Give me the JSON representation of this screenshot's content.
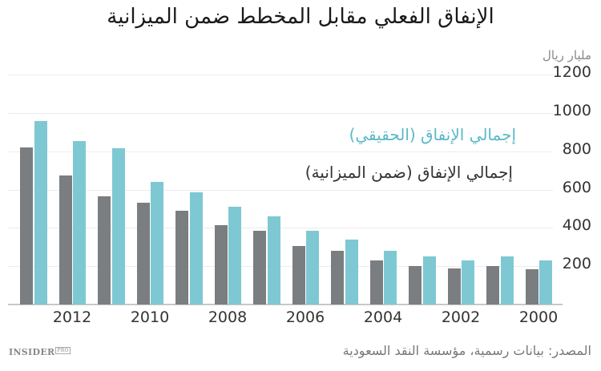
{
  "title": "الإنفاق الفعلي مقابل المخطط ضمن الميزانية",
  "unit_label": "مليار ريال",
  "legend": {
    "actual": "إجمالي الإنفاق (الحقيقي)",
    "budget": "إجمالي الإنفاق (ضمن الميزانية)"
  },
  "source": "المصدر: بيانات رسمية، مؤسسة النقد السعودية",
  "logo": {
    "main": "INSIDER",
    "badge": "PRO"
  },
  "colors": {
    "budget": "#7a7e80",
    "actual": "#7ec8d3"
  },
  "y_ticks": [
    "1200",
    "1000",
    "800",
    "600",
    "400",
    "200"
  ],
  "x_ticks": [
    "2012",
    "2010",
    "2008",
    "2006",
    "2004",
    "2002",
    "2000"
  ],
  "chart_data": {
    "type": "bar",
    "title": "الإنفاق الفعلي مقابل المخطط ضمن الميزانية",
    "ylabel": "مليار ريال",
    "xlabel": "",
    "ylim": [
      0,
      1200
    ],
    "y_ticks": [
      200,
      400,
      600,
      800,
      1000,
      1200
    ],
    "grid": true,
    "legend_position": "inside-top-right",
    "categories": [
      "2013",
      "2012",
      "2011",
      "2010",
      "2009",
      "2008",
      "2007",
      "2006",
      "2005",
      "2004",
      "2003",
      "2002",
      "2001",
      "2000"
    ],
    "x_tick_labels": [
      "2012",
      "2010",
      "2008",
      "2006",
      "2004",
      "2002",
      "2000"
    ],
    "series": [
      {
        "name": "إجمالي الإنفاق (ضمن الميزانية)",
        "color": "#7a7e80",
        "values": [
          820,
          675,
          565,
          530,
          490,
          415,
          385,
          307,
          280,
          232,
          201,
          190,
          201,
          183
        ]
      },
      {
        "name": "إجمالي الإنفاق (الحقيقي)",
        "color": "#7ec8d3",
        "values": [
          960,
          855,
          815,
          640,
          585,
          512,
          462,
          386,
          338,
          280,
          251,
          230,
          250,
          230
        ]
      }
    ]
  }
}
